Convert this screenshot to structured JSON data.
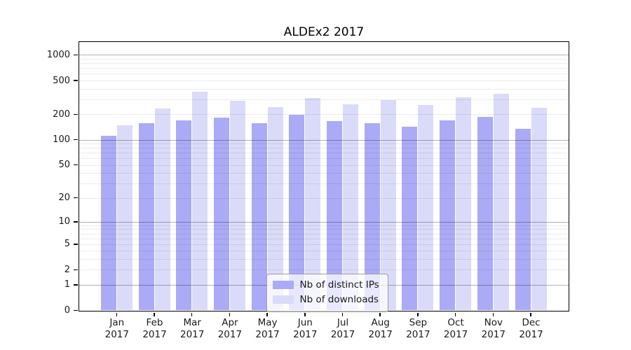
{
  "chart_data": {
    "type": "bar",
    "title": "ALDEx2 2017",
    "year_label": "2017",
    "categories": [
      "Jan",
      "Feb",
      "Mar",
      "Apr",
      "May",
      "Jun",
      "Jul",
      "Aug",
      "Sep",
      "Oct",
      "Nov",
      "Dec"
    ],
    "series": [
      {
        "name": "Nb of distinct IPs",
        "color": "#aaaaf6",
        "values": [
          112,
          158,
          168,
          182,
          157,
          196,
          167,
          156,
          142,
          170,
          188,
          134
        ]
      },
      {
        "name": "Nb of downloads",
        "color": "#dadaf9",
        "values": [
          148,
          236,
          366,
          288,
          242,
          310,
          262,
          292,
          258,
          320,
          352,
          238
        ]
      }
    ],
    "xlabel": "",
    "ylabel": "",
    "yscale": "log1p",
    "yticks": [
      0,
      1,
      2,
      5,
      10,
      20,
      50,
      100,
      200,
      500,
      1000
    ],
    "ylim": [
      0,
      1430
    ],
    "grid": "horizontal, log minor + major decade lines, drawn over bars",
    "legend_position": "inside-bottom-center",
    "colors": {
      "distinct_ips_bar": "#aaaaf6",
      "downloads_bar": "#dadaf9",
      "major_gridline": "#b3b3b3",
      "minor_gridline": "#ebebeb",
      "axis": "#000000",
      "text": "#1a1a1a"
    }
  }
}
